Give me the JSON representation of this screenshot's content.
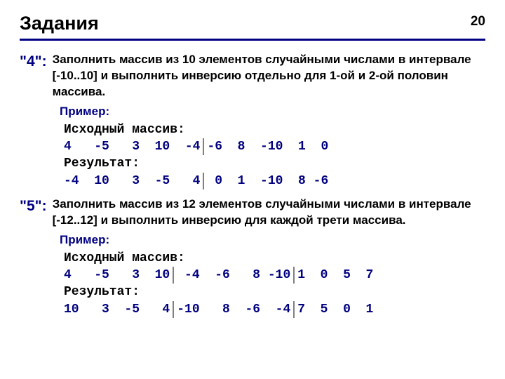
{
  "page": {
    "title": "Задания",
    "number": "20",
    "colors": {
      "accent": "#000080",
      "rule": "#000080",
      "separator": "#808080",
      "text": "#000000",
      "background": "#ffffff"
    }
  },
  "tasks": [
    {
      "label": "\"4\":",
      "text": "Заполнить массив из 10 элементов случайными числами в интервале [-10..10] и выполнить инверсию отдельно для 1-ой и 2-ой половин массива.",
      "example_label": "Пример:",
      "source_label": "Исходный массив:",
      "result_label": "Результат:",
      "source_groups": [
        "4   -5   3  10  -4",
        "-6  8  -10  1  0"
      ],
      "result_groups": [
        "-4  10   3  -5   4",
        " 0  1  -10  8 -6"
      ]
    },
    {
      "label": "\"5\":",
      "text": "Заполнить массив из 12 элементов случайными числами в интервале [-12..12] и выполнить инверсию для каждой трети массива.",
      "example_label": "Пример:",
      "source_label": "Исходный массив:",
      "result_label": "Результат:",
      "source_groups": [
        "4   -5   3  10",
        " -4  -6   8 -10",
        "1  0  5  7"
      ],
      "result_groups": [
        "10   3  -5   4",
        "-10   8  -6  -4",
        "7  5  0  1"
      ]
    }
  ]
}
